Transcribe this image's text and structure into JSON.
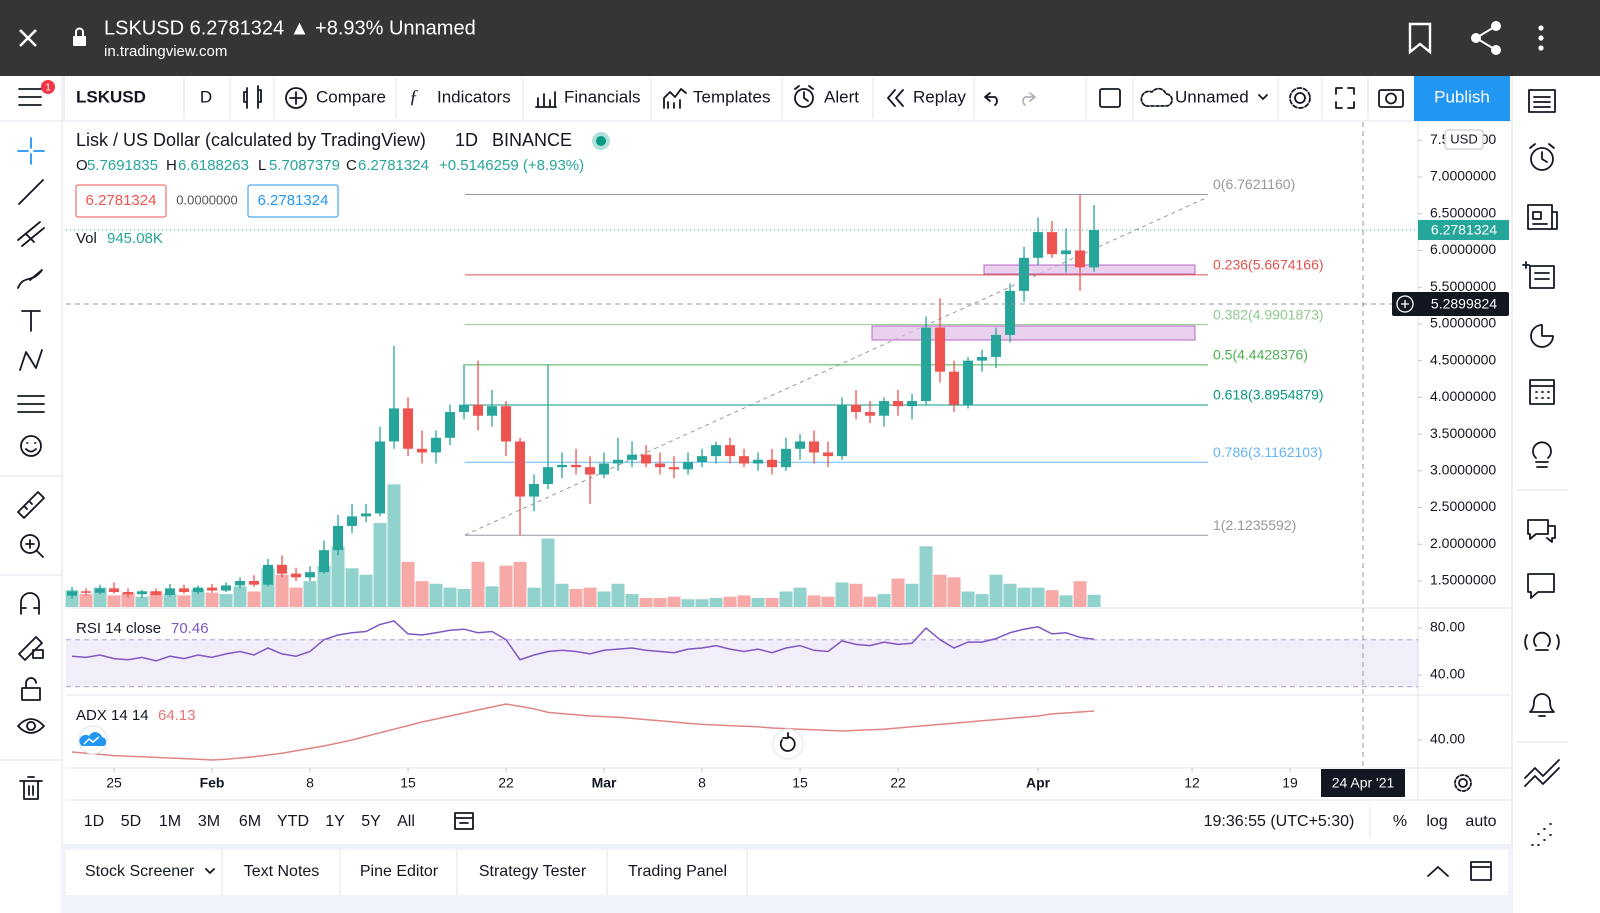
{
  "top_bar": {
    "title": "LSKUSD 6.2781324 ▲ +8.93% Unnamed",
    "url": "in.tradingview.com"
  },
  "toolbar": {
    "symbol": "LSKUSD",
    "interval": "D",
    "compare": "Compare",
    "indicators": "Indicators",
    "financials": "Financials",
    "templates": "Templates",
    "alert": "Alert",
    "replay": "Replay",
    "layout": "Unnamed",
    "publish": "Publish",
    "badge": "1"
  },
  "legend": {
    "title": "Lisk / US Dollar (calculated by TradingView)",
    "interval": "1D",
    "exchange": "BINANCE",
    "o": "O",
    "h": "H",
    "l": "L",
    "c": "C",
    "change": "+0.5146259 (+8.93%)",
    "sell": "6.2781324",
    "spread": "0.0000000",
    "buy": "6.2781324",
    "vol": "Vol",
    "vol_value": "945.08K"
  },
  "price_axis": {
    "currency": "USD",
    "crosshair_price": "5.2899824",
    "crosshair_date": "24 Apr '21"
  },
  "chart_data": {
    "type": "candlestick",
    "up_color": "#26a69a",
    "down_color": "#ef5350",
    "xlim": [
      -0.43,
      96.14
    ],
    "xticks": [
      {
        "value": 3,
        "label": "25"
      },
      {
        "value": 10,
        "label": "Feb"
      },
      {
        "value": 17,
        "label": "8"
      },
      {
        "value": 24,
        "label": "15"
      },
      {
        "value": 31,
        "label": "22"
      },
      {
        "value": 38,
        "label": "Mar"
      },
      {
        "value": 45,
        "label": "8"
      },
      {
        "value": 52,
        "label": "15"
      },
      {
        "value": 59,
        "label": "22"
      },
      {
        "value": 69,
        "label": "Apr"
      },
      {
        "value": 80,
        "label": "12"
      },
      {
        "value": 87,
        "label": "19"
      }
    ],
    "ylim": [
      1.146,
      7.749
    ],
    "yticks": [
      {
        "value": 1.5,
        "label": "1.5000000"
      },
      {
        "value": 2,
        "label": "2.0000000"
      },
      {
        "value": 2.5,
        "label": "2.5000000"
      },
      {
        "value": 3,
        "label": "3.0000000"
      },
      {
        "value": 3.5,
        "label": "3.5000000"
      },
      {
        "value": 4,
        "label": "4.0000000"
      },
      {
        "value": 4.5,
        "label": "4.5000000"
      },
      {
        "value": 5,
        "label": "5.0000000"
      },
      {
        "value": 5.5,
        "label": "5.5000000"
      },
      {
        "value": 6,
        "label": "6.0000000"
      },
      {
        "value": 6.5,
        "label": "6.5000000"
      },
      {
        "value": 7,
        "label": "7.0000000"
      },
      {
        "value": 7.5,
        "label": "7.5000000"
      }
    ],
    "grid": false,
    "candles": [
      [
        1.3,
        1.42,
        1.26,
        1.36
      ],
      [
        1.36,
        1.4,
        1.3,
        1.34
      ],
      [
        1.34,
        1.45,
        1.32,
        1.4
      ],
      [
        1.4,
        1.48,
        1.33,
        1.35
      ],
      [
        1.35,
        1.4,
        1.28,
        1.32
      ],
      [
        1.32,
        1.38,
        1.27,
        1.36
      ],
      [
        1.36,
        1.4,
        1.3,
        1.31
      ],
      [
        1.31,
        1.46,
        1.29,
        1.4
      ],
      [
        1.4,
        1.45,
        1.33,
        1.35
      ],
      [
        1.35,
        1.44,
        1.32,
        1.41
      ],
      [
        1.41,
        1.46,
        1.34,
        1.37
      ],
      [
        1.37,
        1.48,
        1.35,
        1.44
      ],
      [
        1.44,
        1.55,
        1.4,
        1.5
      ],
      [
        1.5,
        1.58,
        1.42,
        1.45
      ],
      [
        1.45,
        1.8,
        1.43,
        1.72
      ],
      [
        1.72,
        1.85,
        1.55,
        1.6
      ],
      [
        1.6,
        1.68,
        1.5,
        1.55
      ],
      [
        1.55,
        1.7,
        1.5,
        1.62
      ],
      [
        1.62,
        2.05,
        1.6,
        1.92
      ],
      [
        1.92,
        2.4,
        1.85,
        2.25
      ],
      [
        2.25,
        2.55,
        2.15,
        2.38
      ],
      [
        2.38,
        2.55,
        2.3,
        2.42
      ],
      [
        2.42,
        3.6,
        2.38,
        3.4
      ],
      [
        3.4,
        4.7,
        3.3,
        3.85
      ],
      [
        3.85,
        4.0,
        3.2,
        3.3
      ],
      [
        3.3,
        3.55,
        3.1,
        3.25
      ],
      [
        3.25,
        3.55,
        3.1,
        3.45
      ],
      [
        3.45,
        3.9,
        3.35,
        3.8
      ],
      [
        3.8,
        4.45,
        3.7,
        3.9
      ],
      [
        3.9,
        4.5,
        3.55,
        3.75
      ],
      [
        3.75,
        4.1,
        3.6,
        3.88
      ],
      [
        3.88,
        3.95,
        3.2,
        3.4
      ],
      [
        3.4,
        3.45,
        2.12,
        2.65
      ],
      [
        2.65,
        2.95,
        2.45,
        2.82
      ],
      [
        2.82,
        4.45,
        2.75,
        3.05
      ],
      [
        3.05,
        3.25,
        2.9,
        3.08
      ],
      [
        3.08,
        3.3,
        2.95,
        3.05
      ],
      [
        3.05,
        3.2,
        2.55,
        2.95
      ],
      [
        2.95,
        3.25,
        2.9,
        3.1
      ],
      [
        3.1,
        3.45,
        3.0,
        3.15
      ],
      [
        3.15,
        3.4,
        3.05,
        3.22
      ],
      [
        3.22,
        3.35,
        3.05,
        3.1
      ],
      [
        3.1,
        3.25,
        2.95,
        3.05
      ],
      [
        3.05,
        3.2,
        2.9,
        3.02
      ],
      [
        3.02,
        3.25,
        2.95,
        3.12
      ],
      [
        3.12,
        3.3,
        3.05,
        3.2
      ],
      [
        3.2,
        3.4,
        3.1,
        3.35
      ],
      [
        3.35,
        3.45,
        3.1,
        3.2
      ],
      [
        3.2,
        3.3,
        3.05,
        3.1
      ],
      [
        3.1,
        3.25,
        3.0,
        3.15
      ],
      [
        3.15,
        3.3,
        2.95,
        3.05
      ],
      [
        3.05,
        3.45,
        3.0,
        3.3
      ],
      [
        3.3,
        3.5,
        3.15,
        3.4
      ],
      [
        3.4,
        3.55,
        3.1,
        3.25
      ],
      [
        3.25,
        3.4,
        3.05,
        3.2
      ],
      [
        3.2,
        4.0,
        3.15,
        3.9
      ],
      [
        3.9,
        4.1,
        3.7,
        3.8
      ],
      [
        3.8,
        3.95,
        3.65,
        3.75
      ],
      [
        3.75,
        4.0,
        3.6,
        3.95
      ],
      [
        3.95,
        4.1,
        3.75,
        3.88
      ],
      [
        3.88,
        4.05,
        3.7,
        3.95
      ],
      [
        3.95,
        5.1,
        3.9,
        4.95
      ],
      [
        4.95,
        5.35,
        4.2,
        4.35
      ],
      [
        4.35,
        4.5,
        3.8,
        3.9
      ],
      [
        3.9,
        4.55,
        3.85,
        4.5
      ],
      [
        4.5,
        4.65,
        4.35,
        4.55
      ],
      [
        4.55,
        4.95,
        4.4,
        4.85
      ],
      [
        4.85,
        5.55,
        4.75,
        5.45
      ],
      [
        5.45,
        6.05,
        5.3,
        5.9
      ],
      [
        5.9,
        6.45,
        5.8,
        6.25
      ],
      [
        6.25,
        6.4,
        5.9,
        5.95
      ],
      [
        5.95,
        6.3,
        5.7,
        6.0
      ],
      [
        6.0,
        6.76,
        5.45,
        5.77
      ],
      [
        5.7691835,
        6.6188263,
        5.7087379,
        6.2781324
      ]
    ],
    "volume": {
      "name": "Vol",
      "vlim": [
        0,
        12000
      ],
      "values": [
        1300,
        1000,
        1500,
        900,
        1100,
        800,
        1200,
        1000,
        900,
        1400,
        1100,
        1000,
        1600,
        1200,
        3000,
        2500,
        1500,
        2000,
        3200,
        4700,
        3000,
        2500,
        6500,
        9500,
        3500,
        2000,
        1800,
        1500,
        1400,
        3500,
        1600,
        3200,
        3500,
        1500,
        5300,
        1800,
        1400,
        1500,
        1200,
        1800,
        1000,
        700,
        700,
        800,
        600,
        600,
        700,
        800,
        900,
        700,
        700,
        1200,
        1500,
        900,
        800,
        1900,
        1800,
        800,
        1000,
        2200,
        1800,
        4700,
        2500,
        2300,
        1200,
        1000,
        2500,
        1800,
        1500,
        1500,
        1300,
        900,
        2000,
        945.08
      ]
    },
    "fib": [
      {
        "label": "0(6.7621160)",
        "value": 6.762116,
        "color": "#9598a1"
      },
      {
        "label": "0.236(5.6674166)",
        "value": 5.6674166,
        "color": "#e0534f"
      },
      {
        "label": "0.382(4.9901873)",
        "value": 4.9901873,
        "color": "#8fc98f"
      },
      {
        "label": "0.5(4.4428376)",
        "value": 4.4428376,
        "color": "#4caf50"
      },
      {
        "label": "0.618(3.8954879)",
        "value": 3.8954879,
        "color": "#089981"
      },
      {
        "label": "0.786(3.1162103)",
        "value": 3.1162103,
        "color": "#64b5f6"
      },
      {
        "label": "1(2.1235592)",
        "value": 2.1235592,
        "color": "#9598a1"
      }
    ],
    "indicators": [
      {
        "name": "RSI 14 close",
        "color": "#7e57c2",
        "ylim": [
          24.7,
          95.3
        ],
        "yticks": [
          {
            "value": 80,
            "label": "80.00"
          },
          {
            "value": 40,
            "label": "40.00"
          }
        ],
        "band": [
          30,
          70
        ],
        "values": [
          56,
          55,
          57,
          54,
          53,
          55,
          52,
          56,
          54,
          57,
          55,
          58,
          60,
          57,
          63,
          58,
          56,
          60,
          70,
          74,
          76,
          77,
          83,
          86,
          75,
          74,
          76,
          78,
          79,
          76,
          77,
          70,
          53,
          57,
          60,
          61,
          60,
          58,
          61,
          62,
          63,
          61,
          60,
          59,
          62,
          63,
          65,
          62,
          60,
          62,
          59,
          63,
          65,
          61,
          60,
          69,
          66,
          65,
          68,
          66,
          67,
          80,
          70,
          63,
          68,
          68,
          71,
          76,
          79,
          81,
          75,
          76,
          72,
          70.46
        ]
      },
      {
        "name": "ADX 14 14",
        "color": "#e08585",
        "ylim": [
          17.5,
          75.8
        ],
        "yticks": [
          {
            "value": 40,
            "label": "40.00"
          }
        ],
        "values": [
          30,
          29,
          28,
          27,
          26.5,
          26,
          25.5,
          25,
          24.5,
          24,
          23.3,
          24,
          25,
          26,
          27.5,
          29,
          31,
          33,
          35,
          37.5,
          40,
          43,
          46,
          49,
          52,
          55,
          57.5,
          60,
          62.5,
          65,
          67.5,
          70,
          68,
          66,
          63,
          62,
          61,
          60,
          59.5,
          59,
          58,
          57,
          56,
          55,
          54,
          53,
          52.5,
          52,
          51.5,
          51,
          50,
          49.5,
          49,
          48.5,
          48,
          47.5,
          48,
          48.5,
          49,
          50,
          51,
          52,
          53,
          54,
          55,
          56,
          57,
          58,
          59,
          60,
          61.7,
          62.5,
          63.3,
          64.13
        ]
      }
    ]
  },
  "bottom_bar": {
    "ranges": [
      "1D",
      "5D",
      "1M",
      "3M",
      "6M",
      "YTD",
      "1Y",
      "5Y",
      "All"
    ],
    "time": "19:36:55 (UTC+5:30)",
    "percent": "%",
    "log": "log",
    "auto": "auto"
  },
  "tabs": [
    "Stock Screener",
    "Text Notes",
    "Pine Editor",
    "Strategy Tester",
    "Trading Panel"
  ]
}
